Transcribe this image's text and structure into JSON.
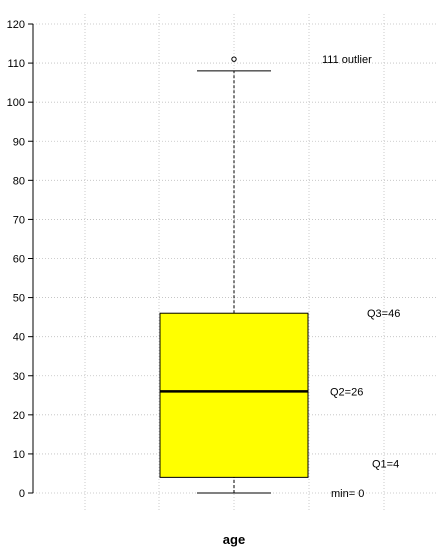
{
  "chart_data": {
    "type": "box",
    "xlabel": "age",
    "ylim": [
      0,
      120
    ],
    "yticks": [
      0,
      10,
      20,
      30,
      40,
      50,
      60,
      70,
      80,
      90,
      100,
      110,
      120
    ],
    "grid": true,
    "box": {
      "whisker_low": 0,
      "q1": 4,
      "median": 26,
      "q3": 46,
      "whisker_high": 108,
      "outliers": [
        111
      ]
    },
    "annotations": [
      {
        "text": "111 outlier",
        "y": 111
      },
      {
        "text": "Q3=46",
        "y": 46
      },
      {
        "text": "Q2=26",
        "y": 26
      },
      {
        "text": "Q1=4",
        "y": 4
      },
      {
        "text": "min= 0",
        "y": 0
      }
    ],
    "colors": {
      "box_fill": "#ffff00",
      "grid": "#bfbfbf"
    }
  }
}
